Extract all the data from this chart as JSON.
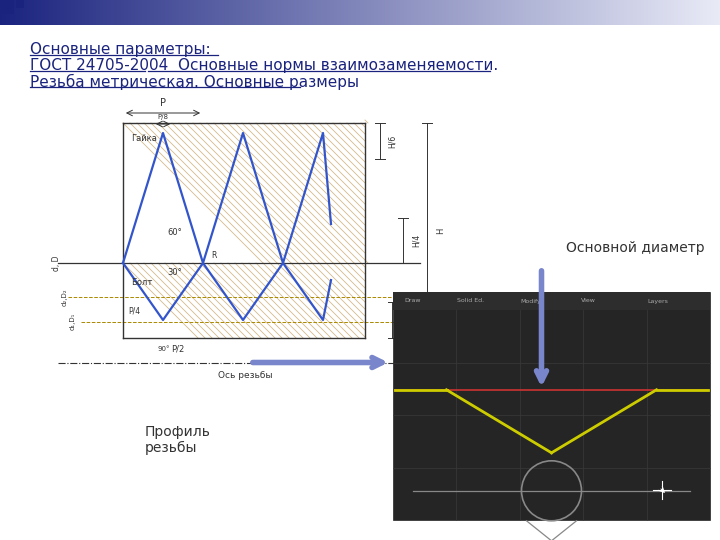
{
  "title_line1": "Основные параметры:",
  "title_line2": "ГОСТ 24705-2004  Основные нормы взаимозаменяемости.",
  "title_line3": "Резьба метрическая. Основные размеры",
  "label_osnovnoy": "Основной диаметр",
  "label_profil": "Профиль\nрезьбы",
  "bg_color": "#ffffff",
  "header_gradient_left": "#1a237e",
  "header_gradient_right": "#e8eaf6",
  "title_color": "#1a237e",
  "cad_bg": "#252525",
  "cad_grid_color": "#3a3a3a",
  "cad_toolbar_bg": "#2d2d2d",
  "cad_thread_color": "#cccc00",
  "cad_red_line": "#cc3333",
  "cad_gray_line": "#888888",
  "arrow_down_color": "#7986cb",
  "arrow_right_color": "#7986cb",
  "schematic_hatch_color": "#c8a96e",
  "schematic_blue_line": "#3355cc",
  "schematic_dim_color": "#aa8800"
}
